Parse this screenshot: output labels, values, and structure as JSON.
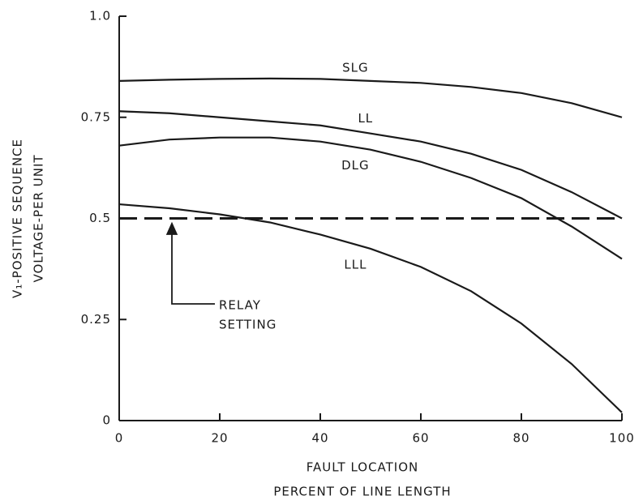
{
  "chart_data": {
    "type": "line",
    "x": [
      0,
      10,
      20,
      30,
      40,
      50,
      60,
      70,
      80,
      90,
      100
    ],
    "series": [
      {
        "name": "SLG",
        "color": "#1a1a1a",
        "values": [
          0.84,
          0.843,
          0.845,
          0.846,
          0.845,
          0.84,
          0.835,
          0.825,
          0.81,
          0.785,
          0.75
        ]
      },
      {
        "name": "LL",
        "color": "#1a1a1a",
        "values": [
          0.765,
          0.76,
          0.75,
          0.74,
          0.73,
          0.71,
          0.69,
          0.66,
          0.62,
          0.565,
          0.5
        ]
      },
      {
        "name": "DLG",
        "color": "#1a1a1a",
        "values": [
          0.68,
          0.695,
          0.7,
          0.7,
          0.69,
          0.67,
          0.64,
          0.6,
          0.55,
          0.48,
          0.4
        ]
      },
      {
        "name": "LLL",
        "color": "#1a1a1a",
        "values": [
          0.535,
          0.525,
          0.51,
          0.49,
          0.46,
          0.425,
          0.38,
          0.32,
          0.24,
          0.14,
          0.02
        ]
      }
    ],
    "reference_line": {
      "value": 0.5,
      "label": [
        "RELAY",
        "SETTING"
      ],
      "dashed": true
    },
    "xlabel": [
      "FAULT LOCATION",
      "PERCENT OF LINE LENGTH"
    ],
    "ylabel": [
      "V₁-POSITIVE SEQUENCE",
      "VOLTAGE-PER UNIT"
    ],
    "xlim": [
      0,
      100
    ],
    "xticks": [
      0,
      20,
      40,
      60,
      80,
      100
    ],
    "ylim": [
      0,
      1
    ],
    "yticks": [
      0,
      0.25,
      0.5,
      0.75,
      {
        "value": 1,
        "label": "1.0"
      }
    ],
    "grid": false
  }
}
